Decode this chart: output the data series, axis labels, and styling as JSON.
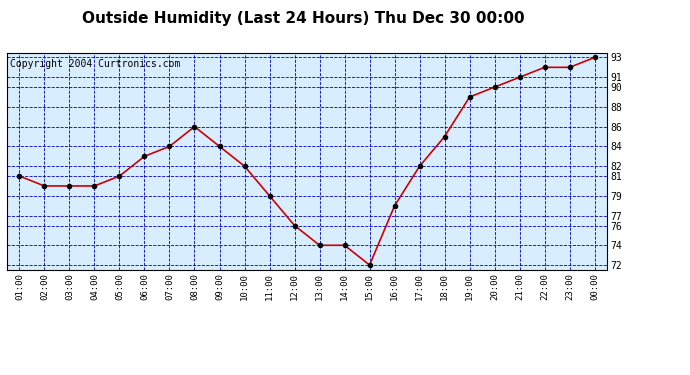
{
  "title": "Outside Humidity (Last 24 Hours) Thu Dec 30 00:00",
  "copyright": "Copyright 2004 Curtronics.com",
  "x_labels": [
    "01:00",
    "02:00",
    "03:00",
    "04:00",
    "05:00",
    "06:00",
    "07:00",
    "08:00",
    "09:00",
    "10:00",
    "11:00",
    "12:00",
    "13:00",
    "14:00",
    "15:00",
    "16:00",
    "17:00",
    "18:00",
    "19:00",
    "20:00",
    "21:00",
    "22:00",
    "23:00",
    "00:00"
  ],
  "y_values": [
    81,
    80,
    80,
    80,
    81,
    83,
    84,
    86,
    84,
    82,
    79,
    76,
    74,
    74,
    72,
    78,
    82,
    85,
    89,
    90,
    91,
    92,
    92,
    93
  ],
  "ylim_min": 71.5,
  "ylim_max": 93.5,
  "yticks": [
    72,
    74,
    76,
    77,
    79,
    81,
    82,
    84,
    86,
    88,
    90,
    91,
    93
  ],
  "line_color": "#cc0000",
  "marker_color": "#000000",
  "bg_color": "#d8eeff",
  "fig_bg_color": "#ffffff",
  "grid_color": "#0000bb",
  "title_fontsize": 11,
  "copyright_fontsize": 7
}
